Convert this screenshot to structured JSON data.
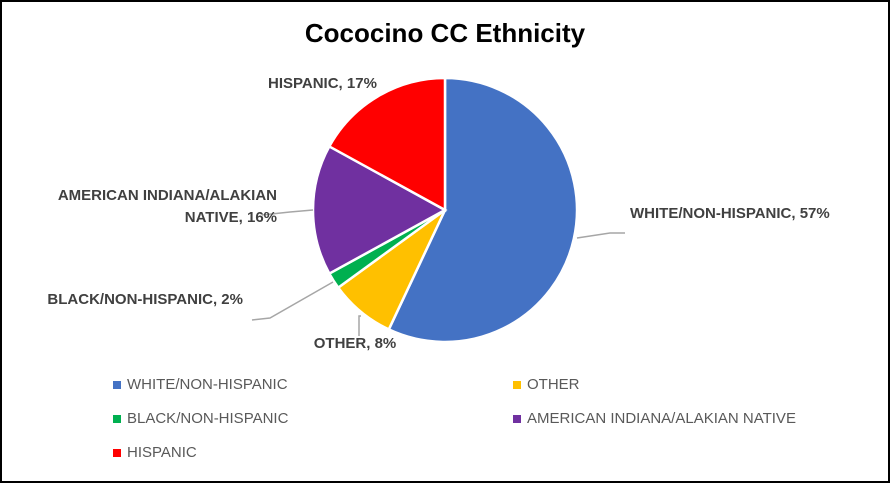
{
  "chart_data": {
    "type": "pie",
    "title": "Cococino CC Ethnicity",
    "slices": [
      {
        "name": "WHITE/NON-HISPANIC",
        "value": 57,
        "label": "WHITE/NON-HISPANIC, 57%",
        "color": "#4472C4"
      },
      {
        "name": "OTHER",
        "value": 8,
        "label": "OTHER, 8%",
        "color": "#FFC000"
      },
      {
        "name": "BLACK/NON-HISPANIC",
        "value": 2,
        "label": "BLACK/NON-HISPANIC, 2%",
        "color": "#00B050"
      },
      {
        "name": "AMERICAN INDIANA/ALAKIAN NATIVE",
        "value": 16,
        "label": "AMERICAN INDIANA/ALAKIAN NATIVE, 16%",
        "label_lines": [
          "AMERICAN INDIANA/ALAKIAN",
          "NATIVE, 16%"
        ],
        "color": "#7030A0"
      },
      {
        "name": "HISPANIC",
        "value": 17,
        "label": "HISPANIC, 17%",
        "color": "#FF0000"
      }
    ],
    "legend": {
      "placement": "bottom",
      "items": [
        {
          "label": "WHITE/NON-HISPANIC",
          "color": "#4472C4"
        },
        {
          "label": "OTHER",
          "color": "#FFC000"
        },
        {
          "label": "BLACK/NON-HISPANIC",
          "color": "#00B050"
        },
        {
          "label": "AMERICAN INDIANA/ALAKIAN NATIVE",
          "color": "#7030A0"
        },
        {
          "label": "HISPANIC",
          "color": "#FF0000"
        }
      ]
    }
  }
}
